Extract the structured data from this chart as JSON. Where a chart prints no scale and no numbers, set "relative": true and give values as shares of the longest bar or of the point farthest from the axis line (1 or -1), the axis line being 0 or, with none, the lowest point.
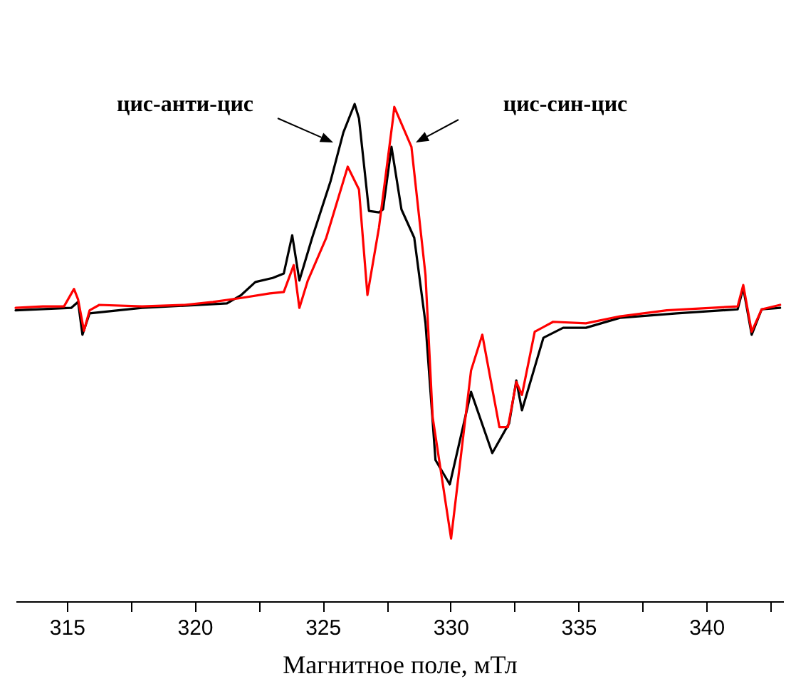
{
  "chart_data": {
    "type": "line",
    "xlabel": "Магнитное поле, мТл",
    "relative": true,
    "xlim": [
      313,
      343
    ],
    "xticks": [
      315,
      {
        "value": 317.5,
        "label": null
      },
      320,
      {
        "value": 322.5,
        "label": null
      },
      325,
      {
        "value": 327.5,
        "label": null
      },
      330,
      {
        "value": 332.5,
        "label": null
      },
      335,
      {
        "value": 337.5,
        "label": null
      },
      340,
      {
        "value": 342.5,
        "label": null
      }
    ],
    "grid": false,
    "marker": "none",
    "line_style": "solid",
    "annotations": [
      "цис-анти-цис",
      "цис-син-цис"
    ],
    "series": [
      {
        "color": "#000000",
        "x": [
          313.0,
          315.17,
          315.44,
          315.61,
          315.89,
          317.94,
          321.26,
          321.82,
          322.37,
          323.04,
          323.48,
          323.81,
          324.09,
          324.59,
          325.31,
          325.81,
          326.25,
          326.42,
          326.81,
          327.2,
          327.36,
          327.69,
          328.08,
          328.58,
          329.02,
          329.41,
          329.97,
          330.8,
          331.63,
          332.29,
          332.57,
          332.79,
          333.63,
          334.4,
          335.29,
          336.62,
          338.84,
          341.22,
          341.44,
          341.77,
          342.16,
          342.88
        ],
        "values": [
          0.585,
          0.59,
          0.602,
          0.536,
          0.579,
          0.59,
          0.599,
          0.616,
          0.642,
          0.65,
          0.659,
          0.736,
          0.645,
          0.731,
          0.845,
          0.943,
          1.0,
          0.971,
          0.785,
          0.782,
          0.788,
          0.914,
          0.788,
          0.731,
          0.559,
          0.284,
          0.235,
          0.421,
          0.298,
          0.358,
          0.444,
          0.384,
          0.53,
          0.55,
          0.55,
          0.57,
          0.579,
          0.587,
          0.63,
          0.536,
          0.587,
          0.59
        ]
      },
      {
        "color": "#ff0000",
        "x": [
          313.0,
          314.06,
          314.89,
          315.28,
          315.44,
          315.67,
          315.89,
          316.27,
          317.94,
          319.6,
          320.71,
          321.82,
          322.93,
          323.48,
          323.87,
          324.09,
          324.42,
          325.14,
          325.98,
          326.42,
          326.75,
          327.2,
          327.75,
          327.8,
          328.47,
          329.02,
          329.3,
          330.02,
          330.8,
          331.24,
          331.91,
          332.24,
          332.57,
          332.79,
          333.29,
          334.01,
          335.29,
          336.62,
          338.45,
          341.22,
          341.44,
          341.77,
          342.16,
          342.88
        ],
        "values": [
          0.59,
          0.593,
          0.593,
          0.628,
          0.607,
          0.544,
          0.585,
          0.596,
          0.593,
          0.596,
          0.602,
          0.61,
          0.619,
          0.622,
          0.676,
          0.59,
          0.645,
          0.731,
          0.874,
          0.828,
          0.616,
          0.751,
          0.971,
          0.994,
          0.914,
          0.656,
          0.37,
          0.126,
          0.464,
          0.536,
          0.35,
          0.35,
          0.441,
          0.415,
          0.542,
          0.562,
          0.559,
          0.573,
          0.585,
          0.593,
          0.636,
          0.542,
          0.587,
          0.596
        ]
      }
    ]
  }
}
